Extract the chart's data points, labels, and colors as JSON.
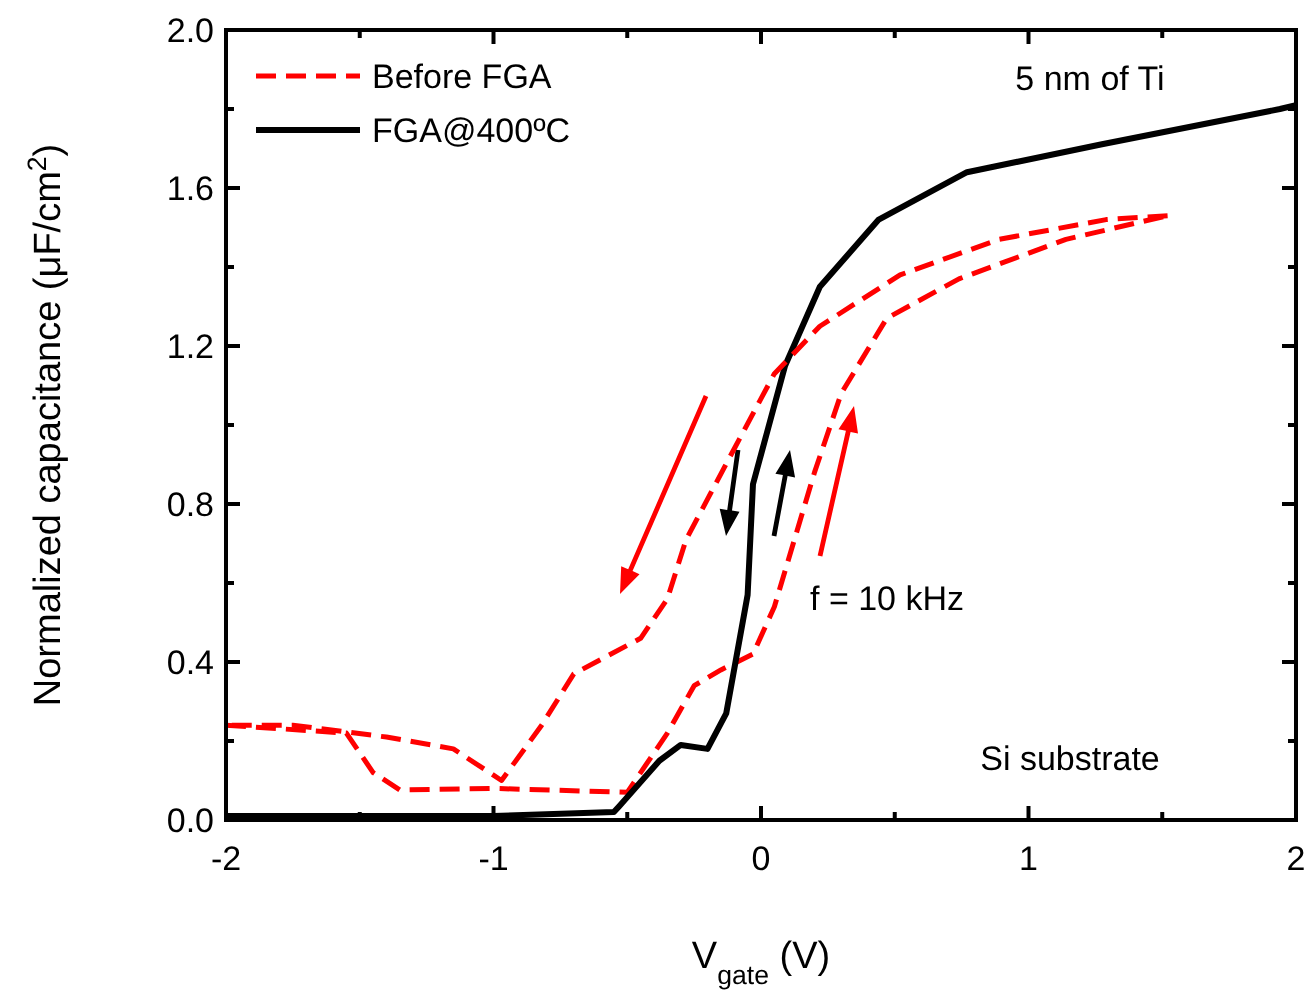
{
  "chart_data": {
    "type": "line",
    "xlabel": "V$_{gate}$ (V)",
    "ylabel": "Normalized capacitance (μF/cm$^{2}$)",
    "xlim": [
      -2,
      2
    ],
    "ylim": [
      0,
      2
    ],
    "xticks": [
      -2,
      {
        "value": -1.5,
        "label": null
      },
      -1,
      {
        "value": -0.5,
        "label": null
      },
      0,
      {
        "value": 0.5,
        "label": null
      },
      1,
      {
        "value": 1.5,
        "label": null
      },
      2
    ],
    "yticks": [
      {
        "value": 0,
        "label": "0.0"
      },
      {
        "value": 0.2,
        "label": null
      },
      0.4,
      {
        "value": 0.6,
        "label": null
      },
      0.8,
      {
        "value": 1,
        "label": null
      },
      1.2,
      {
        "value": 1.4,
        "label": null
      },
      1.6,
      {
        "value": 1.8,
        "label": null
      },
      {
        "value": 2,
        "label": "2.0"
      }
    ],
    "grid": false,
    "legend": "top left",
    "marker": "none",
    "series": [
      {
        "name": "Before FGA",
        "color": "#ff0000",
        "line_style": "dashed",
        "x": [
          -2,
          -1.55,
          -1.45,
          -1.35,
          -1,
          -0.5,
          -0.35,
          -0.25,
          -0.15,
          -0.03,
          0.05,
          0.2,
          0.3,
          0.47,
          0.74,
          1.14,
          1.52
        ],
        "values": [
          0.24,
          0.22,
          0.12,
          0.076,
          0.08,
          0.07,
          0.22,
          0.34,
          0.38,
          0.42,
          0.54,
          0.88,
          1.08,
          1.27,
          1.37,
          1.47,
          1.53
        ]
      },
      {
        "name": "FGA@400ºC",
        "color": "#000000",
        "line_style": "solid",
        "x": [
          -2,
          -1,
          -0.55,
          -0.53,
          -0.38,
          -0.3,
          -0.2,
          -0.13,
          -0.05,
          -0.03,
          0.09,
          0.22,
          0.44,
          0.77,
          1.27,
          1.94,
          2
        ],
        "values": [
          0.01,
          0.01,
          0.02,
          0.035,
          0.15,
          0.19,
          0.18,
          0.27,
          0.57,
          0.85,
          1.15,
          1.35,
          1.52,
          1.64,
          1.71,
          1.8,
          1.81
        ]
      },
      {
        "color": "#ff0000",
        "line_style": "dashed",
        "x": [
          1.52,
          1.29,
          0.89,
          0.52,
          0.22,
          0.05,
          -0.1,
          -0.28,
          -0.35,
          -0.45,
          -0.7,
          -0.82,
          -0.97,
          -1.15,
          -1.4,
          -1.75,
          -2
        ],
        "values": [
          1.53,
          1.52,
          1.47,
          1.38,
          1.25,
          1.13,
          0.94,
          0.71,
          0.56,
          0.46,
          0.37,
          0.24,
          0.1,
          0.18,
          0.21,
          0.24,
          0.24
        ]
      }
    ],
    "annotations": [
      {
        "text": "5 nm of Ti"
      },
      {
        "text": "f = 10 kHz"
      },
      {
        "text": "Si substrate"
      }
    ]
  }
}
